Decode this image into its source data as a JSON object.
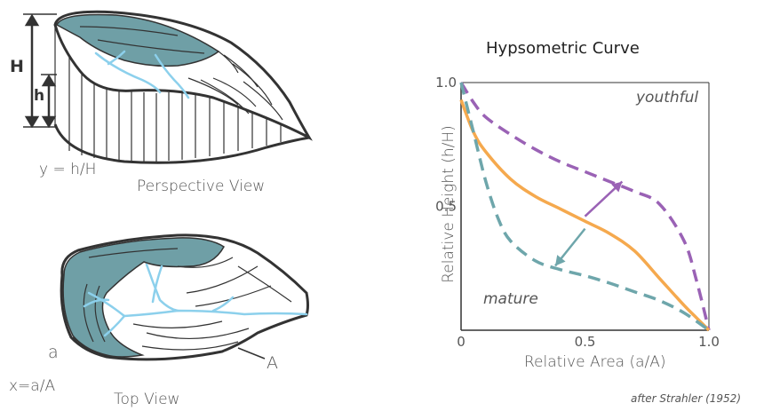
{
  "left": {
    "H_label": "H",
    "h_label": "h",
    "y_formula": "y = h/H",
    "perspective_caption": "Perspective View",
    "a_label": "a",
    "A_label": "A",
    "x_formula": "x=a/A",
    "top_caption": "Top View"
  },
  "chart": {
    "title": "Hypsometric Curve",
    "annotations": {
      "youthful": "youthful",
      "mature": "mature"
    },
    "attribution": "after Strahler (1952)"
  },
  "colors": {
    "teal_fill": "#6f9fa6",
    "outline": "#333333",
    "stream": "#8cd0ec",
    "purple": "#9a62b5",
    "orange": "#f5a94e",
    "teal_curve": "#6ea6ab"
  },
  "chart_data": {
    "type": "line",
    "title": "Hypsometric Curve",
    "xlabel": "Relative Area (a/A)",
    "ylabel": "Relative Height (h/H)",
    "xlim": [
      0,
      1.0
    ],
    "ylim": [
      0,
      1.0
    ],
    "xticks": [
      {
        "value": 0,
        "label": "0"
      },
      {
        "value": 0.5,
        "label": "0.5"
      },
      {
        "value": 1.0,
        "label": "1.0"
      }
    ],
    "yticks": [
      {
        "value": 0.5,
        "label": "0.5"
      },
      {
        "value": 1.0,
        "label": "1.0"
      }
    ],
    "series": [
      {
        "name": "youthful",
        "color": "#9a62b5",
        "dash": true,
        "x": [
          0,
          0.05,
          0.1,
          0.2,
          0.3,
          0.4,
          0.5,
          0.6,
          0.7,
          0.8,
          0.9,
          0.95,
          1.0
        ],
        "y": [
          1.0,
          0.92,
          0.86,
          0.79,
          0.73,
          0.68,
          0.64,
          0.6,
          0.56,
          0.51,
          0.36,
          0.2,
          0.0
        ]
      },
      {
        "name": "",
        "color": "#f5a94e",
        "dash": false,
        "x": [
          0,
          0.05,
          0.1,
          0.2,
          0.3,
          0.4,
          0.5,
          0.6,
          0.7,
          0.8,
          0.9,
          0.95,
          1.0
        ],
        "y": [
          0.93,
          0.8,
          0.72,
          0.61,
          0.54,
          0.49,
          0.44,
          0.39,
          0.32,
          0.21,
          0.1,
          0.05,
          0.0
        ]
      },
      {
        "name": "mature",
        "color": "#6ea6ab",
        "dash": true,
        "x": [
          0,
          0.05,
          0.1,
          0.15,
          0.2,
          0.3,
          0.4,
          0.5,
          0.6,
          0.7,
          0.8,
          0.9,
          1.0
        ],
        "y": [
          1.0,
          0.8,
          0.6,
          0.45,
          0.36,
          0.28,
          0.245,
          0.22,
          0.19,
          0.155,
          0.12,
          0.07,
          0.0
        ]
      }
    ],
    "arrows": [
      {
        "from": [
          0.5,
          0.46
        ],
        "to": [
          0.65,
          0.6
        ],
        "color": "#9a62b5"
      },
      {
        "from": [
          0.5,
          0.41
        ],
        "to": [
          0.38,
          0.26
        ],
        "color": "#6ea6ab"
      }
    ],
    "grid": false
  }
}
